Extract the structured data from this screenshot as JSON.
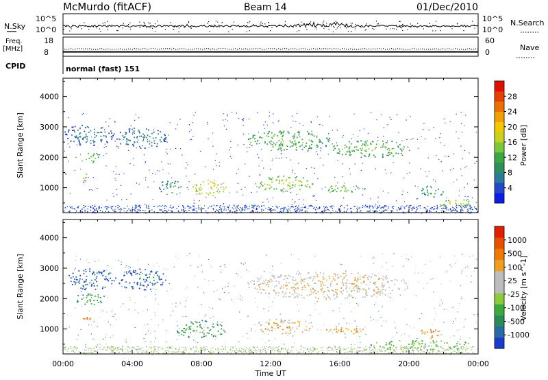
{
  "header": {
    "station": "McMurdo (fitACF)",
    "beam": "Beam 14",
    "date": "01/Dec/2010"
  },
  "top_panels": {
    "nsky": {
      "label": "N.Sky",
      "tick_top": "10^5",
      "tick_bottom": "10^0",
      "right_label": "N.Search",
      "right_tick_top": "10^5",
      "right_tick_bottom": "10^0",
      "level_fraction": 0.35
    },
    "freq": {
      "label_line1": "Freq.",
      "label_line2": "[MHz]",
      "tick_top": "18",
      "tick_bottom": "8",
      "right_label": "Nave",
      "right_tick_top": "60",
      "right_tick_bottom": "0",
      "freq_level_mhz": 10.3,
      "nave_level": 24
    },
    "cpid": {
      "label": "CPID",
      "mode": "normal (fast) 151"
    }
  },
  "chart_data": [
    {
      "type": "heatmap",
      "title": "Power",
      "xlabel": "",
      "ylabel": "Slant Range [km]",
      "x_hours_range": [
        0,
        24
      ],
      "xticks": [
        "00:00",
        "04:00",
        "08:00",
        "12:00",
        "16:00",
        "20:00",
        "00:00"
      ],
      "ylim": [
        180,
        4600
      ],
      "yticks": [
        1000,
        2000,
        3000,
        4000
      ],
      "colorbar": {
        "label": "Power [dB]",
        "ticks": [
          "4",
          "8",
          "12",
          "16",
          "20",
          "24",
          "28"
        ],
        "colors": [
          "#0a1ee8",
          "#2348c8",
          "#2a7a9a",
          "#2f8f5c",
          "#3aa840",
          "#7cc83a",
          "#c8d020",
          "#f2c800",
          "#f0a000",
          "#ec7000",
          "#e84000",
          "#e01000"
        ]
      },
      "regions": [
        {
          "t": [
            0.0,
            3.0
          ],
          "r": [
            2400,
            3100
          ],
          "level": 0.1
        },
        {
          "t": [
            1.0,
            2.2
          ],
          "r": [
            1850,
            2150
          ],
          "level": 0.35
        },
        {
          "t": [
            1.1,
            1.5
          ],
          "r": [
            1200,
            1500
          ],
          "level": 0.45
        },
        {
          "t": [
            3.0,
            6.0
          ],
          "r": [
            2300,
            3000
          ],
          "level": 0.12
        },
        {
          "t": [
            5.5,
            6.8
          ],
          "r": [
            800,
            1300
          ],
          "level": 0.2
        },
        {
          "t": [
            7.4,
            9.4
          ],
          "r": [
            750,
            1300
          ],
          "level": 0.5
        },
        {
          "t": [
            10.5,
            15.5
          ],
          "r": [
            2200,
            2900
          ],
          "level": 0.3
        },
        {
          "t": [
            15.5,
            20.0
          ],
          "r": [
            2000,
            2600
          ],
          "level": 0.3
        },
        {
          "t": [
            11.0,
            14.5
          ],
          "r": [
            900,
            1400
          ],
          "level": 0.4
        },
        {
          "t": [
            15.0,
            17.5
          ],
          "r": [
            850,
            1100
          ],
          "level": 0.35
        },
        {
          "t": [
            20.6,
            22.0
          ],
          "r": [
            700,
            1100
          ],
          "level": 0.25
        },
        {
          "t": [
            21.5,
            24.0
          ],
          "r": [
            400,
            650
          ],
          "level": 0.4
        }
      ]
    },
    {
      "type": "heatmap",
      "title": "Velocity",
      "xlabel": "Time UT",
      "ylabel": "Slant Range [km]",
      "x_hours_range": [
        0,
        24
      ],
      "xticks": [
        "00:00",
        "04:00",
        "08:00",
        "12:00",
        "16:00",
        "20:00",
        "00:00"
      ],
      "ylim": [
        180,
        4600
      ],
      "yticks": [
        1000,
        2000,
        3000,
        4000
      ],
      "colorbar": {
        "label": "Velocity [m s^-1]",
        "ticks": [
          "1000",
          "500",
          "100",
          "25",
          "-25",
          "-100",
          "-500",
          "-1000"
        ],
        "colors": [
          "#1a3cc8",
          "#2a6aa8",
          "#2a8a5a",
          "#3caa3c",
          "#8ccc3c",
          "#bdbdbd",
          "#bdbdbd",
          "#f0a020",
          "#f07a00",
          "#e85000",
          "#e02000"
        ]
      },
      "regions": [
        {
          "t": [
            0.2,
            3.0
          ],
          "r": [
            2300,
            3000
          ],
          "level": 0.0
        },
        {
          "t": [
            0.6,
            2.5
          ],
          "r": [
            1800,
            2200
          ],
          "level": 0.2
        },
        {
          "t": [
            1.1,
            1.6
          ],
          "r": [
            1200,
            1500
          ],
          "level": 0.75
        },
        {
          "t": [
            3.0,
            6.0
          ],
          "r": [
            2300,
            3000
          ],
          "level": 0.0
        },
        {
          "t": [
            6.5,
            9.4
          ],
          "r": [
            700,
            1300
          ],
          "level": 0.2
        },
        {
          "t": [
            10.5,
            20.0
          ],
          "r": [
            2000,
            2900
          ],
          "level": 0.55
        },
        {
          "t": [
            11.0,
            14.5
          ],
          "r": [
            850,
            1350
          ],
          "level": 0.6
        },
        {
          "t": [
            15.0,
            17.5
          ],
          "r": [
            850,
            1100
          ],
          "level": 0.65
        },
        {
          "t": [
            20.6,
            21.8
          ],
          "r": [
            700,
            1100
          ],
          "level": 0.7
        },
        {
          "t": [
            17.5,
            24.0
          ],
          "r": [
            300,
            650
          ],
          "level": 0.3
        }
      ]
    }
  ]
}
